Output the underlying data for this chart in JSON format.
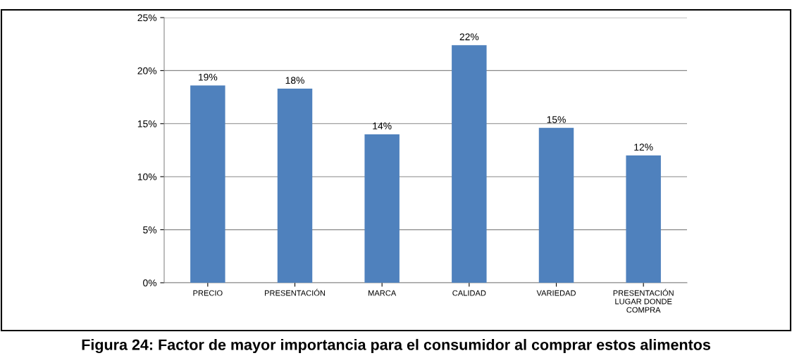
{
  "chart_data": {
    "type": "bar",
    "title": "Figura 24: Factor de mayor importancia para el consumidor al comprar estos alimentos",
    "categories": [
      "PRECIO",
      "PRESENTACIÓN",
      "MARCA",
      "CALIDAD",
      "VARIEDAD",
      "PRESENTACIÓN\nLUGAR DONDE\nCOMPRA"
    ],
    "values": [
      18.6,
      18.3,
      14.0,
      22.4,
      14.6,
      12.0
    ],
    "value_labels": [
      "19%",
      "18%",
      "14%",
      "22%",
      "15%",
      "12%"
    ],
    "color": "#4f81bd",
    "ylim": [
      0,
      25
    ],
    "yticks": [
      {
        "value": 0,
        "label": "0%"
      },
      {
        "value": 5,
        "label": "5%"
      },
      {
        "value": 10,
        "label": "10%"
      },
      {
        "value": 15,
        "label": "15%"
      },
      {
        "value": 20,
        "label": "20%"
      },
      {
        "value": 25,
        "label": "25%"
      }
    ],
    "grid": "y",
    "legend": false
  }
}
